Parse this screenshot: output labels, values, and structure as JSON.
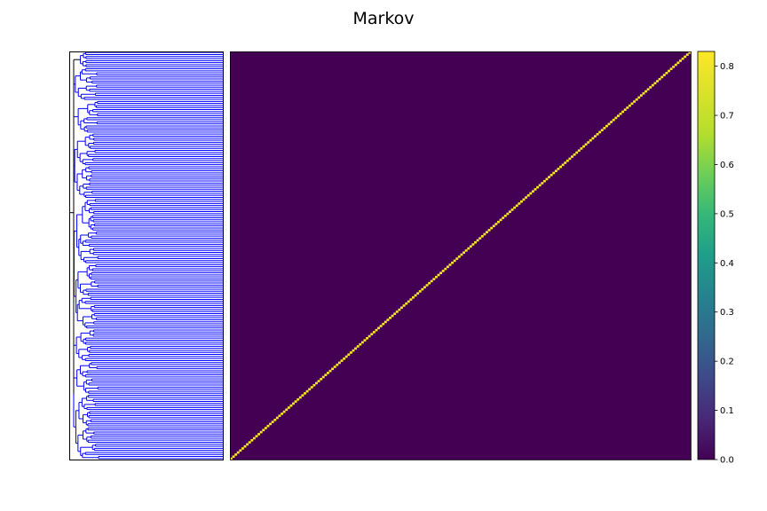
{
  "title": "Markov",
  "chart_data": {
    "type": "heatmap",
    "title": "Markov",
    "matrix_size": 200,
    "diagonal_value": 0.83,
    "background_value": 0.0,
    "colormap": "viridis",
    "colorbar": {
      "range": [
        0.0,
        0.83
      ],
      "ticks": [
        0.0,
        0.1,
        0.2,
        0.3,
        0.4,
        0.5,
        0.6,
        0.7,
        0.8
      ],
      "tick_labels": [
        "0.0",
        "0.1",
        "0.2",
        "0.3",
        "0.4",
        "0.5",
        "0.6",
        "0.7",
        "0.8"
      ]
    },
    "dendrogram": {
      "orientation": "left",
      "color": "#0000ff",
      "leaves": 200
    },
    "xlabel": "",
    "ylabel": "",
    "grid": false
  }
}
